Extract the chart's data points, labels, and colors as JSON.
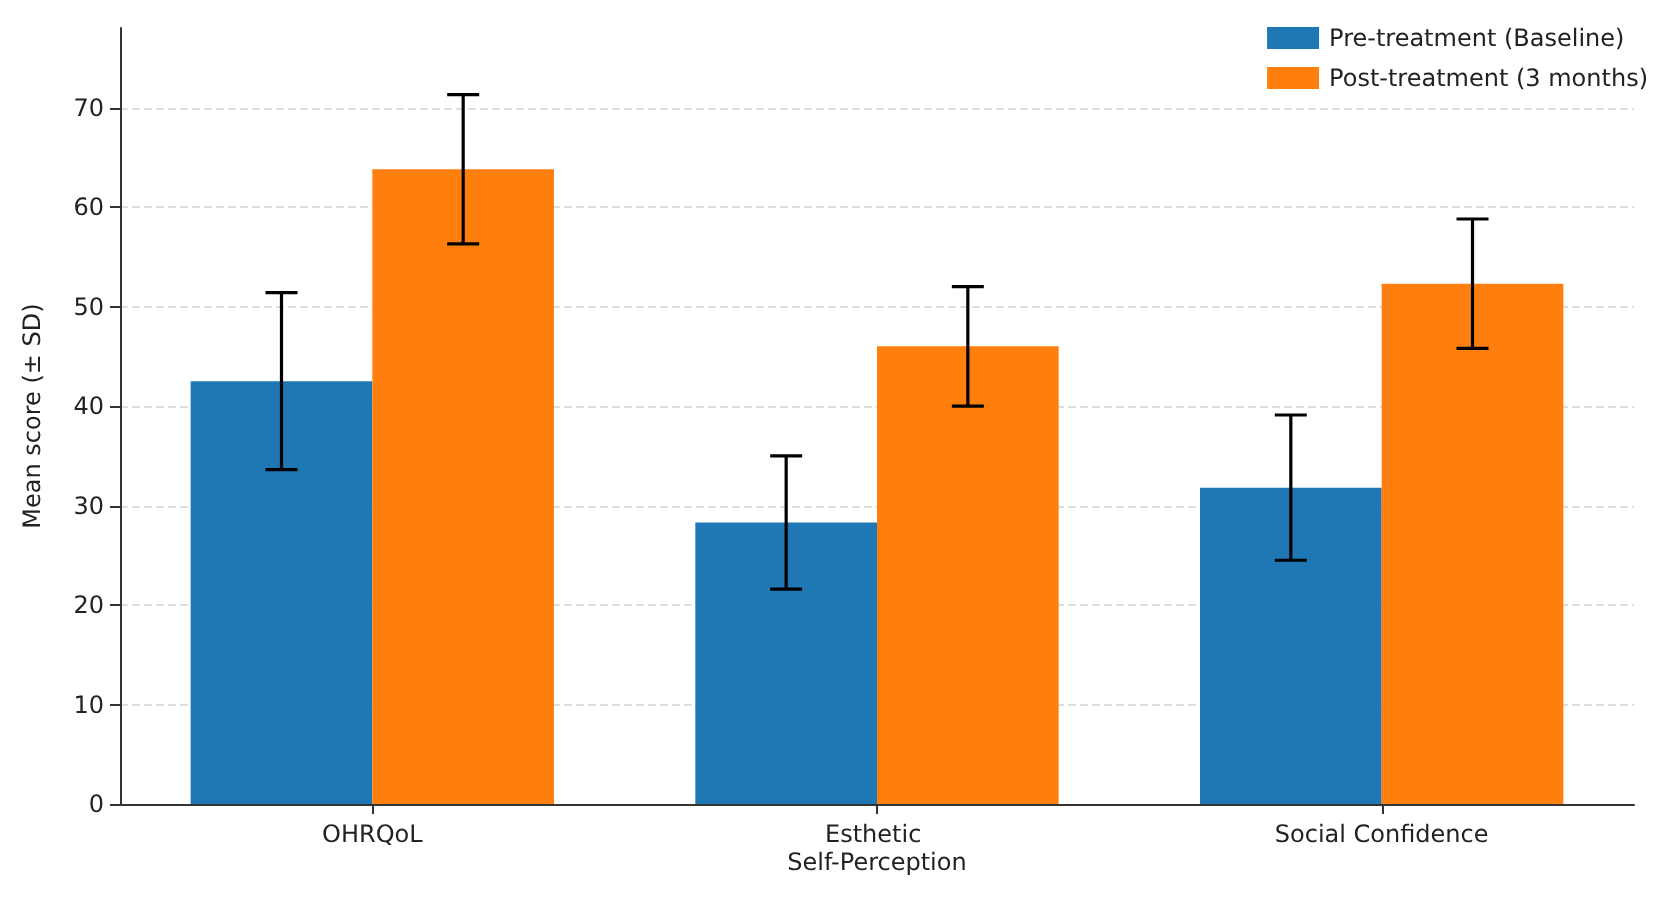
{
  "chart_data": {
    "type": "bar",
    "ylabel": "Mean score (± SD)",
    "categories": [
      "OHRQoL",
      "Esthetic Self-Perception",
      "Social Confidence"
    ],
    "series": [
      {
        "name": "Pre-treatment (Baseline)",
        "color": "#1f77b4",
        "values": [
          42.5,
          28.3,
          31.8
        ],
        "errors": [
          8.9,
          6.7,
          7.3
        ]
      },
      {
        "name": "Post-treatment (3 months)",
        "color": "#ff7f0e",
        "values": [
          63.8,
          46.0,
          52.3
        ],
        "errors": [
          7.5,
          6.0,
          6.5
        ]
      }
    ],
    "ylim": [
      0,
      78
    ],
    "yticks": [
      0,
      10,
      20,
      30,
      40,
      50,
      60,
      70
    ],
    "grid": "y",
    "legend": "top right"
  }
}
